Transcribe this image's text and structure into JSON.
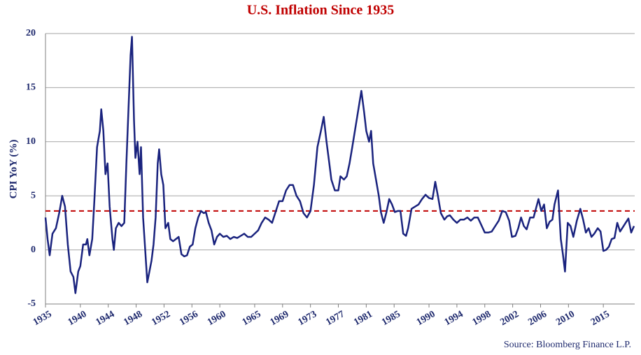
{
  "chart_data": {
    "type": "line",
    "title": "U.S. Inflation Since 1935",
    "y_label": "CPI YoY (%)",
    "source": "Source: Bloomberg Finance L.P.",
    "xlim": [
      1935,
      2019.5
    ],
    "xticks": [
      1935,
      1940,
      1944,
      1948,
      1952,
      1956,
      1960,
      1965,
      1969,
      1973,
      1977,
      1981,
      1985,
      1990,
      1994,
      1998,
      2002,
      2006,
      2010,
      2015
    ],
    "ylim": [
      -5,
      20
    ],
    "yticks": [
      -5,
      0,
      5,
      10,
      15,
      20
    ],
    "grid": true,
    "mean_line": {
      "value": 3.6,
      "color": "#c00000"
    },
    "series": [
      {
        "name": "CPI YoY",
        "color": "#1a237e",
        "x": [
          1935.0,
          1935.3,
          1935.6,
          1936.0,
          1936.5,
          1937.0,
          1937.4,
          1937.8,
          1938.2,
          1938.6,
          1939.0,
          1939.3,
          1939.7,
          1940.0,
          1940.4,
          1940.8,
          1941.0,
          1941.3,
          1941.7,
          1942.0,
          1942.4,
          1942.8,
          1943.0,
          1943.3,
          1943.6,
          1943.9,
          1944.2,
          1944.6,
          1944.8,
          1945.1,
          1945.5,
          1945.9,
          1946.3,
          1946.6,
          1946.9,
          1947.2,
          1947.4,
          1947.7,
          1947.9,
          1948.2,
          1948.5,
          1948.7,
          1949.0,
          1949.3,
          1949.6,
          1949.9,
          1950.2,
          1950.5,
          1950.8,
          1951.1,
          1951.3,
          1951.6,
          1951.9,
          1952.2,
          1952.6,
          1952.9,
          1953.3,
          1953.7,
          1954.1,
          1954.5,
          1954.9,
          1955.3,
          1955.7,
          1956.1,
          1956.5,
          1956.9,
          1957.3,
          1957.7,
          1958.0,
          1958.4,
          1958.8,
          1959.2,
          1959.6,
          1960.0,
          1960.5,
          1961.0,
          1961.5,
          1962.0,
          1962.5,
          1963.0,
          1963.5,
          1964.0,
          1964.5,
          1965.0,
          1965.5,
          1966.0,
          1966.5,
          1967.0,
          1967.5,
          1968.0,
          1968.5,
          1969.0,
          1969.5,
          1970.0,
          1970.5,
          1971.0,
          1971.5,
          1972.0,
          1972.5,
          1973.0,
          1973.5,
          1974.0,
          1974.5,
          1974.9,
          1975.3,
          1975.7,
          1976.0,
          1976.5,
          1977.0,
          1977.3,
          1977.8,
          1978.2,
          1978.6,
          1979.0,
          1979.5,
          1980.0,
          1980.3,
          1980.7,
          1981.0,
          1981.4,
          1981.7,
          1982.0,
          1982.4,
          1982.8,
          1983.1,
          1983.5,
          1983.9,
          1984.3,
          1984.7,
          1985.1,
          1985.5,
          1985.9,
          1986.3,
          1986.7,
          1987.0,
          1987.5,
          1988.0,
          1988.5,
          1989.0,
          1989.5,
          1990.0,
          1990.5,
          1990.9,
          1991.3,
          1991.7,
          1992.2,
          1992.6,
          1993.0,
          1993.5,
          1994.0,
          1994.5,
          1995.0,
          1995.5,
          1996.0,
          1996.5,
          1997.0,
          1997.5,
          1998.0,
          1998.5,
          1999.0,
          1999.5,
          2000.0,
          2000.5,
          2001.0,
          2001.5,
          2001.9,
          2002.4,
          2002.8,
          2003.2,
          2003.6,
          2004.0,
          2004.5,
          2005.0,
          2005.7,
          2006.1,
          2006.5,
          2006.9,
          2007.3,
          2007.7,
          2008.0,
          2008.5,
          2008.9,
          2009.2,
          2009.5,
          2009.9,
          2010.3,
          2010.7,
          2011.2,
          2011.7,
          2012.1,
          2012.5,
          2012.9,
          2013.3,
          2013.7,
          2014.2,
          2014.6,
          2015.0,
          2015.4,
          2015.8,
          2016.2,
          2016.6,
          2017.0,
          2017.4,
          2017.8,
          2018.2,
          2018.6,
          2019.0,
          2019.4
        ],
        "values": [
          3.0,
          1.0,
          -0.5,
          1.5,
          2.0,
          3.5,
          5.0,
          4.0,
          0.5,
          -2.0,
          -2.5,
          -4.0,
          -2.0,
          -1.5,
          0.5,
          0.5,
          1.0,
          -0.5,
          1.0,
          4.5,
          9.5,
          11.0,
          13.0,
          11.0,
          7.0,
          8.0,
          4.0,
          1.0,
          0.0,
          2.0,
          2.5,
          2.2,
          2.5,
          8.0,
          13.0,
          18.0,
          19.7,
          12.0,
          8.5,
          10.0,
          7.0,
          9.5,
          3.0,
          0.0,
          -3.0,
          -2.0,
          -1.0,
          0.5,
          3.0,
          8.0,
          9.3,
          7.0,
          6.0,
          2.0,
          2.5,
          1.0,
          0.8,
          1.0,
          1.2,
          -0.4,
          -0.6,
          -0.5,
          0.3,
          0.5,
          2.0,
          3.0,
          3.6,
          3.4,
          3.5,
          2.5,
          1.8,
          0.5,
          1.2,
          1.5,
          1.2,
          1.3,
          1.0,
          1.2,
          1.1,
          1.3,
          1.5,
          1.2,
          1.2,
          1.5,
          1.8,
          2.5,
          3.0,
          2.8,
          2.5,
          3.5,
          4.5,
          4.5,
          5.5,
          6.0,
          6.0,
          5.0,
          4.5,
          3.4,
          3.0,
          3.6,
          6.0,
          9.5,
          11.0,
          12.3,
          10.0,
          8.0,
          6.5,
          5.5,
          5.5,
          6.8,
          6.5,
          6.8,
          8.0,
          9.5,
          11.5,
          13.5,
          14.7,
          12.7,
          11.0,
          10.0,
          11.0,
          8.0,
          6.5,
          5.0,
          3.5,
          2.5,
          3.5,
          4.7,
          4.2,
          3.5,
          3.6,
          3.6,
          1.5,
          1.3,
          2.0,
          3.8,
          4.0,
          4.2,
          4.7,
          5.1,
          4.8,
          4.7,
          6.3,
          4.9,
          3.4,
          2.8,
          3.1,
          3.2,
          2.8,
          2.5,
          2.8,
          2.8,
          3.0,
          2.7,
          3.0,
          3.0,
          2.3,
          1.6,
          1.6,
          1.7,
          2.2,
          2.7,
          3.6,
          3.5,
          2.7,
          1.2,
          1.3,
          2.0,
          3.0,
          2.2,
          1.9,
          3.0,
          3.0,
          4.7,
          3.6,
          4.2,
          2.0,
          2.6,
          2.8,
          4.2,
          5.5,
          1.0,
          -0.4,
          -2.0,
          2.5,
          2.2,
          1.2,
          2.7,
          3.8,
          2.8,
          1.6,
          2.0,
          1.2,
          1.5,
          2.0,
          1.7,
          -0.1,
          0.0,
          0.3,
          1.0,
          1.1,
          2.5,
          1.7,
          2.1,
          2.5,
          2.9,
          1.6,
          2.2
        ]
      }
    ]
  }
}
